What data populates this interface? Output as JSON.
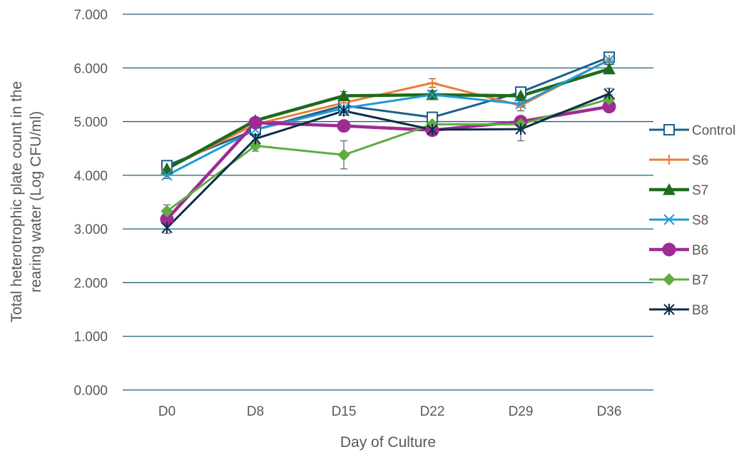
{
  "chart_data": {
    "type": "line",
    "title": "",
    "xlabel": "Day of Culture",
    "ylabel_lines": [
      "Total heterotrophic plate count in the",
      "rearing water (Log CFU/ml)"
    ],
    "categories": [
      "D0",
      "D8",
      "D15",
      "D22",
      "D29",
      "D36"
    ],
    "ylim": [
      0,
      7
    ],
    "yticks": [
      "0.000",
      "1.000",
      "2.000",
      "3.000",
      "4.000",
      "5.000",
      "6.000",
      "7.000"
    ],
    "grid": true,
    "legend_position": "right",
    "series": [
      {
        "name": "Control",
        "color": "#1f5f8b",
        "marker": "square-open",
        "values": [
          4.18,
          4.85,
          5.3,
          5.08,
          5.55,
          6.2
        ],
        "errors": [
          0.08,
          0.05,
          0.08,
          0.1,
          0.06,
          0.06
        ]
      },
      {
        "name": "S6",
        "color": "#ed7d31",
        "marker": "plus",
        "values": [
          4.12,
          4.95,
          5.35,
          5.72,
          5.3,
          6.15
        ],
        "errors": [
          0.1,
          0.06,
          0.08,
          0.08,
          0.1,
          0.08
        ]
      },
      {
        "name": "S7",
        "color": "#1e6b1e",
        "marker": "triangle",
        "values": [
          4.12,
          5.02,
          5.48,
          5.5,
          5.48,
          5.98
        ],
        "errors": [
          0.06,
          0.06,
          0.08,
          0.08,
          0.06,
          0.08
        ]
      },
      {
        "name": "S8",
        "color": "#1f9bd7",
        "marker": "x",
        "values": [
          4.0,
          4.85,
          5.25,
          5.5,
          5.33,
          6.15
        ],
        "errors": [
          0.06,
          0.06,
          0.08,
          0.06,
          0.06,
          0.08
        ]
      },
      {
        "name": "B6",
        "color": "#a02b93",
        "marker": "circle",
        "values": [
          3.18,
          4.98,
          4.92,
          4.84,
          5.0,
          5.28
        ],
        "errors": [
          0.08,
          0.08,
          0.1,
          0.06,
          0.06,
          0.06
        ]
      },
      {
        "name": "B7",
        "color": "#5fad41",
        "marker": "diamond",
        "values": [
          3.33,
          4.55,
          4.38,
          4.95,
          4.95,
          5.42
        ],
        "errors": [
          0.12,
          0.1,
          0.26,
          0.12,
          0.1,
          0.08
        ]
      },
      {
        "name": "B8",
        "color": "#0b2c4a",
        "marker": "star",
        "values": [
          3.02,
          4.68,
          5.2,
          4.85,
          4.86,
          5.52
        ],
        "errors": [
          0.1,
          0.06,
          0.08,
          0.06,
          0.22,
          0.1
        ]
      }
    ]
  }
}
